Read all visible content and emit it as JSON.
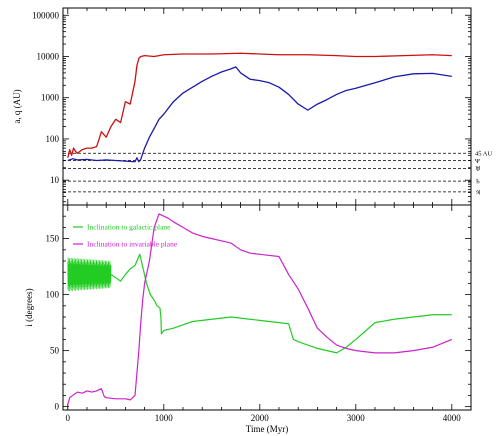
{
  "chart_data": [
    {
      "type": "line",
      "panel": "top",
      "ylabel": "a, q (AU)",
      "yscale": "log",
      "xlim": [
        -50,
        4200
      ],
      "ylim": [
        2.5,
        150000
      ],
      "yticks": [
        10,
        100,
        1000,
        10000,
        100000
      ],
      "ytick_labels": [
        "10",
        "100",
        "1000",
        "10000",
        "100000"
      ],
      "colors": {
        "a": "#cc1111",
        "q": "#1a1aaa",
        "ref": "#000000"
      },
      "series": [
        {
          "key": "a",
          "x": [
            0,
            20,
            40,
            60,
            80,
            100,
            150,
            200,
            250,
            300,
            350,
            400,
            450,
            500,
            550,
            600,
            650,
            700,
            720,
            740,
            760,
            800,
            900,
            1000,
            1200,
            1500,
            1800,
            2000,
            2200,
            2500,
            2800,
            3000,
            3200,
            3500,
            3800,
            4000
          ],
          "y": [
            35,
            55,
            40,
            60,
            50,
            45,
            55,
            60,
            60,
            65,
            150,
            110,
            200,
            300,
            250,
            800,
            700,
            2500,
            6000,
            9000,
            10000,
            10500,
            10000,
            11000,
            11500,
            11500,
            12000,
            11500,
            11000,
            11000,
            10500,
            10000,
            10000,
            10500,
            11000,
            10500
          ]
        },
        {
          "key": "q",
          "x": [
            0,
            50,
            100,
            200,
            300,
            400,
            500,
            600,
            700,
            720,
            740,
            760,
            800,
            850,
            900,
            950,
            1000,
            1100,
            1200,
            1300,
            1400,
            1500,
            1600,
            1700,
            1750,
            1800,
            1900,
            2000,
            2100,
            2200,
            2300,
            2400,
            2500,
            2600,
            2700,
            2800,
            2900,
            3000,
            3200,
            3400,
            3600,
            3800,
            4000
          ],
          "y": [
            30,
            33,
            31,
            32,
            30,
            31,
            30,
            29,
            28,
            35,
            28,
            32,
            60,
            110,
            180,
            300,
            400,
            800,
            1300,
            1800,
            2500,
            3300,
            4200,
            5000,
            5600,
            4000,
            2800,
            2600,
            2300,
            1800,
            1200,
            700,
            500,
            700,
            900,
            1200,
            1500,
            1700,
            2300,
            3200,
            3800,
            3900,
            3300
          ]
        }
      ],
      "reference_lines": [
        {
          "y": 45,
          "label": "45 AU"
        },
        {
          "y": 30,
          "label": "Ψ"
        },
        {
          "y": 19.2,
          "label": "♅"
        },
        {
          "y": 9.5,
          "label": "♄"
        },
        {
          "y": 5.2,
          "label": "♃"
        }
      ]
    },
    {
      "type": "line",
      "panel": "bottom",
      "xlabel": "Time (Myr)",
      "ylabel": "i (degrees)",
      "xlim": [
        -50,
        4200
      ],
      "ylim": [
        -3,
        180
      ],
      "xticks": [
        0,
        1000,
        2000,
        3000,
        4000
      ],
      "yticks": [
        0,
        50,
        100,
        150
      ],
      "legend_position": "top-left",
      "series": [
        {
          "name": "Inclination to galactic plane",
          "color": "#22cc22",
          "oscillation": {
            "x_start": 0,
            "x_end": 450,
            "center": 118,
            "amplitude_start": 15,
            "amplitude_end": 12
          },
          "x": [
            450,
            500,
            550,
            600,
            650,
            700,
            720,
            750,
            780,
            820,
            860,
            900,
            930,
            960,
            970,
            975,
            1000,
            1100,
            1200,
            1300,
            1400,
            1500,
            1600,
            1700,
            1800,
            1900,
            2000,
            2100,
            2200,
            2300,
            2350,
            2400,
            2500,
            2600,
            2700,
            2800,
            2900,
            3000,
            3200,
            3400,
            3600,
            3800,
            4000
          ],
          "y": [
            118,
            115,
            112,
            118,
            123,
            126,
            130,
            136,
            125,
            110,
            100,
            95,
            90,
            88,
            80,
            65,
            68,
            70,
            73,
            76,
            77,
            78,
            79,
            80,
            79,
            78,
            77,
            76,
            75,
            74,
            60,
            58,
            55,
            52,
            50,
            48,
            53,
            60,
            75,
            78,
            80,
            82,
            82
          ]
        },
        {
          "name": "Inclination to invariable plane",
          "color": "#cc22cc",
          "x": [
            0,
            20,
            50,
            100,
            150,
            200,
            250,
            300,
            350,
            380,
            400,
            500,
            600,
            650,
            700,
            720,
            740,
            760,
            780,
            800,
            850,
            900,
            950,
            1000,
            1050,
            1100,
            1200,
            1300,
            1400,
            1500,
            1600,
            1700,
            1800,
            1900,
            2000,
            2100,
            2200,
            2300,
            2400,
            2500,
            2600,
            2700,
            2800,
            2900,
            3000,
            3200,
            3400,
            3600,
            3800,
            4000
          ],
          "y": [
            2,
            8,
            10,
            13,
            12,
            14,
            13,
            14,
            16,
            9,
            8,
            7,
            7,
            6,
            10,
            30,
            50,
            75,
            95,
            110,
            130,
            160,
            172,
            170,
            168,
            165,
            160,
            155,
            152,
            150,
            148,
            146,
            140,
            137,
            136,
            135,
            134,
            118,
            105,
            88,
            70,
            62,
            55,
            52,
            50,
            48,
            48,
            50,
            53,
            60
          ]
        }
      ]
    }
  ]
}
